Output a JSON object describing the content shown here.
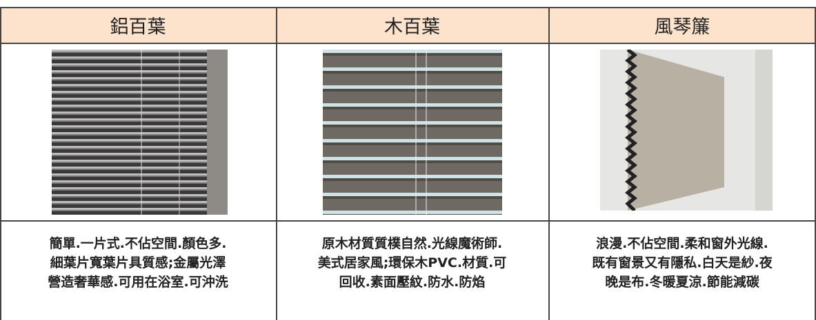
{
  "table": {
    "headers": [
      "鋁百葉",
      "木百葉",
      "風琴簾"
    ],
    "descriptions": [
      [
        "簡單.一片式.不佔空間.顏色多.",
        "細葉片寬葉片具質感;金屬光澤",
        "營造奢華感.可用在浴室.可沖洗"
      ],
      [
        "原木材質質樸自然.光線魔術師.",
        "美式居家風;環保木PVC.材質.可",
        "回收.素面壓紋.防水.防焰"
      ],
      [
        "浪漫.不佔空間.柔和窗外光線.",
        "既有窗景又有隱私.白天是紗.夜",
        "晚是布.冬暖夏涼.節能減碳"
      ]
    ]
  }
}
